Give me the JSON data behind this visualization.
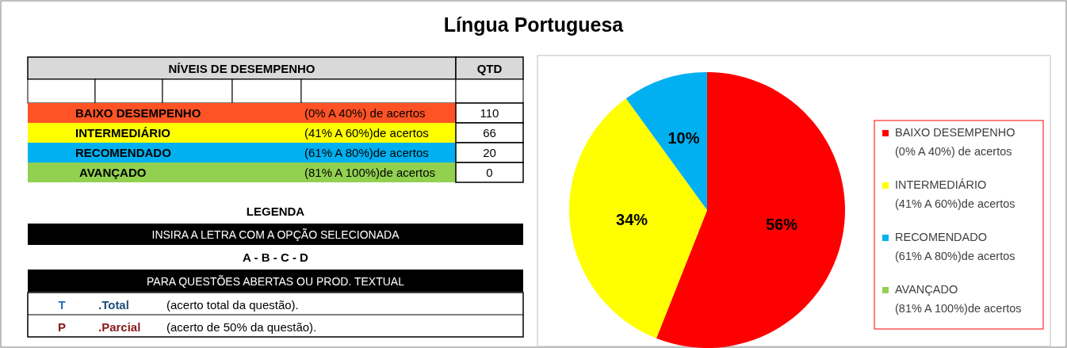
{
  "chart_data": {
    "type": "pie",
    "title": "Língua Portuguesa",
    "categories": [
      "BAIXO DESEMPENHO",
      "INTERMEDIÁRIO",
      "RECOMENDADO",
      "AVANÇADO"
    ],
    "values": [
      56,
      34,
      10,
      0
    ],
    "colors": [
      "#ff0000",
      "#ffff00",
      "#00b0f0",
      "#92d050"
    ],
    "value_labels": [
      "56%",
      "34%",
      "10%",
      null
    ],
    "legend": "right",
    "annotations": [
      "NÍVEIS DE DESEMPENHO",
      "QTD",
      "(0% A 40%) de acertos",
      "(41% A 60%)de acertos",
      "(61% A 80%)de acertos",
      "(81% A 100%)de acertos",
      "LEGENDA",
      "INSIRA A LETRA COM A OPÇÃO SELECIONADA",
      "A - B - C - D",
      "PARA QUESTÕES ABERTAS OU PROD. TEXTUAL",
      "T",
      ".Total",
      "(acerto total da questão).",
      "P",
      ".Parcial",
      "(acerto de 50% da questão).",
      "110",
      "66",
      "20",
      "0"
    ]
  }
}
